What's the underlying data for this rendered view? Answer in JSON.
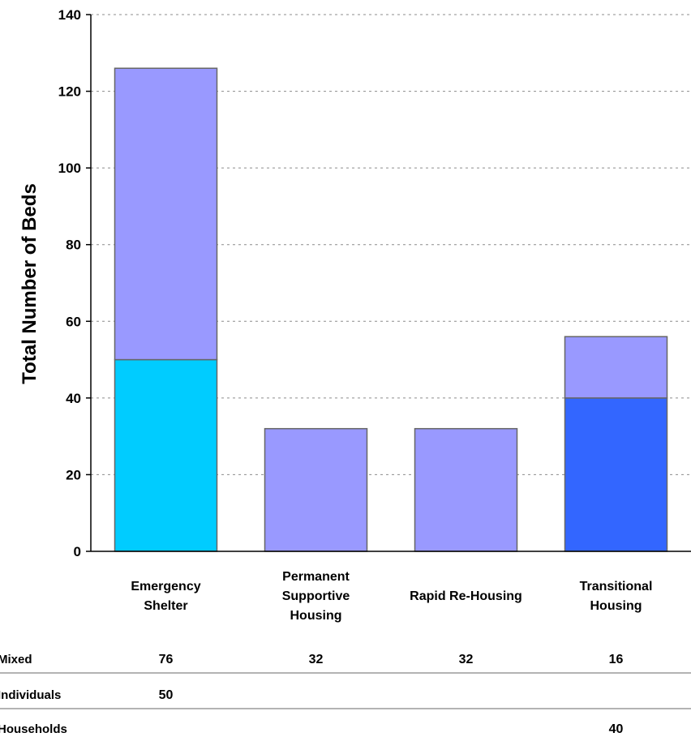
{
  "chart_data": {
    "type": "bar",
    "stacked": true,
    "categories": [
      [
        "Emergency",
        "Shelter"
      ],
      [
        "Permanent",
        "Supportive",
        "Housing"
      ],
      [
        "Rapid Re-Housing"
      ],
      [
        "Transitional",
        "Housing"
      ]
    ],
    "series": [
      {
        "name": "Individuals",
        "values": [
          50,
          null,
          null,
          null
        ],
        "color": "#00ccff"
      },
      {
        "name": "Households",
        "values": [
          null,
          null,
          null,
          40
        ],
        "color": "#3366ff"
      },
      {
        "name": "Mixed",
        "values": [
          76,
          32,
          32,
          16
        ],
        "color": "#9999ff"
      }
    ],
    "table_rows": [
      {
        "label": "Mixed",
        "cells": [
          "76",
          "32",
          "32",
          "16"
        ]
      },
      {
        "label": "Individuals",
        "cells": [
          "50",
          "",
          "",
          ""
        ]
      },
      {
        "label": "Households",
        "cells": [
          "",
          "",
          "",
          "40"
        ]
      }
    ],
    "ylabel": "Total Number of Beds",
    "ylim": [
      0,
      140
    ],
    "yticks": [
      0,
      20,
      40,
      60,
      80,
      100,
      120,
      140
    ],
    "grid": "horizontal-dashed"
  }
}
